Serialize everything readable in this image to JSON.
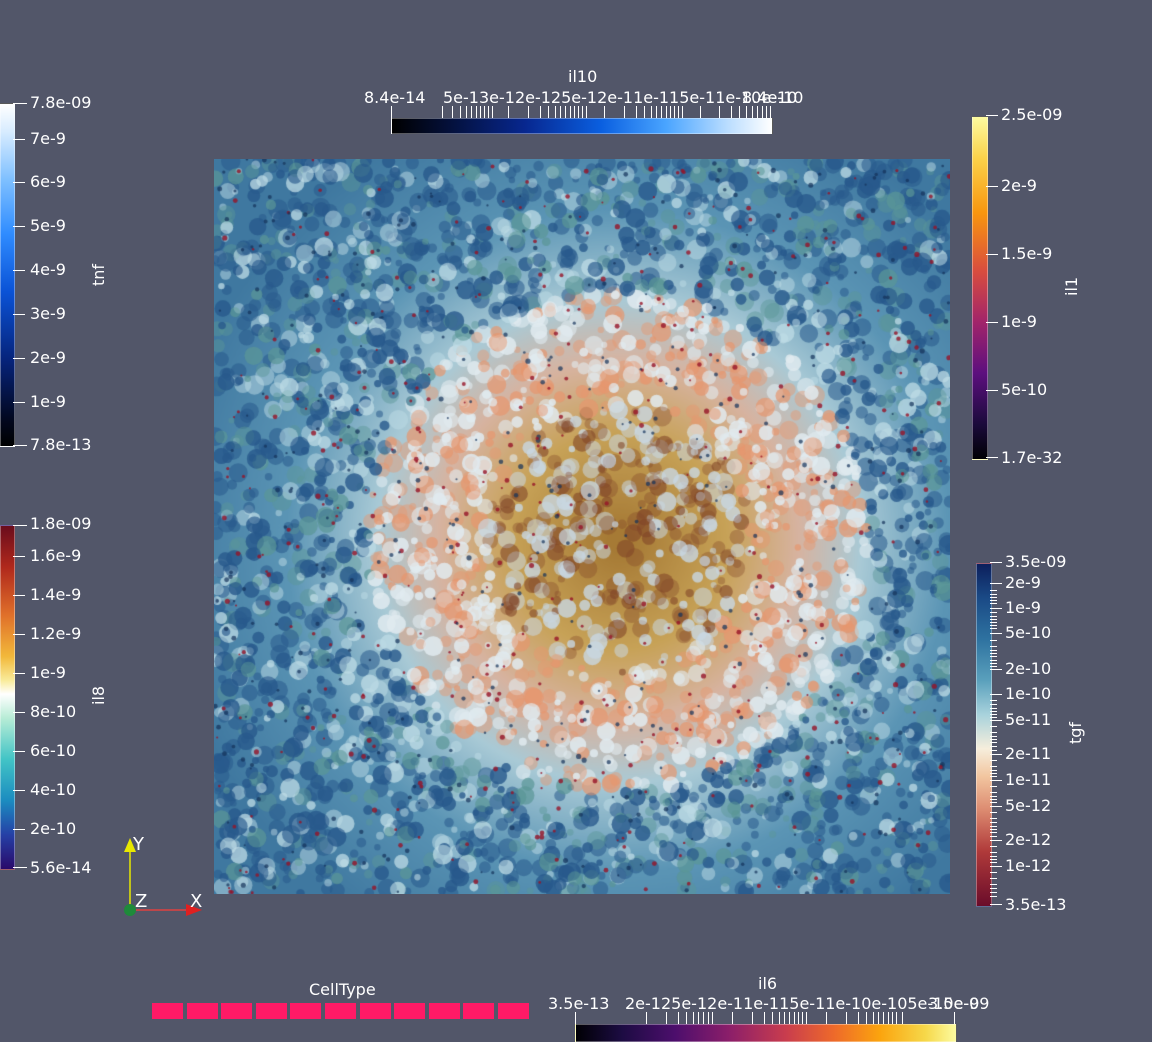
{
  "scene": {
    "colors": {
      "background": "#525669",
      "core": "#b88a3a",
      "ring": "#d4c0c0",
      "outer": "#4c86a8",
      "celltype_swatch": "#ff1a66"
    },
    "viewport_name": "render-view"
  },
  "tnf": {
    "title": "tnf",
    "max_label": "7.8e-09",
    "min_label": "7.8e-13",
    "ticks": [
      "7e-9",
      "6e-9",
      "5e-9",
      "4e-9",
      "3e-9",
      "2e-9",
      "1e-9"
    ]
  },
  "il10": {
    "title": "il10",
    "min_label": "8.4e-14",
    "max_label": "8.4e-10",
    "ticks_text": "5e-13e-12e-125e-12e-11e-115e-11e-10e-10"
  },
  "il1": {
    "title": "il1",
    "max_label": "2.5e-09",
    "min_label": "1.7e-32",
    "ticks": [
      "2e-9",
      "1.5e-9",
      "1e-9",
      "5e-10"
    ]
  },
  "il8": {
    "title": "il8",
    "max_label": "1.8e-09",
    "min_label": "5.6e-14",
    "ticks": [
      "1.6e-9",
      "1.4e-9",
      "1.2e-9",
      "1e-9",
      "8e-10",
      "6e-10",
      "4e-10",
      "2e-10"
    ]
  },
  "tgf": {
    "title": "tgf",
    "max_label": "3.5e-09",
    "min_label": "3.5e-13",
    "ticks": [
      "2e-9",
      "1e-9",
      "5e-10",
      "2e-10",
      "1e-10",
      "5e-11",
      "2e-11",
      "1e-11",
      "5e-12",
      "2e-12",
      "1e-12"
    ]
  },
  "il6": {
    "title": "il6",
    "min_label": "3.5e-13",
    "max_label": "3.5e-09",
    "ticks_text": "2e-125e-12e-11e-115e-11e-10e-105e-10e-9"
  },
  "celltype": {
    "title": "CellType",
    "swatch_count": 11
  },
  "axes": {
    "y": "Y",
    "z": "Z",
    "x": "X"
  }
}
